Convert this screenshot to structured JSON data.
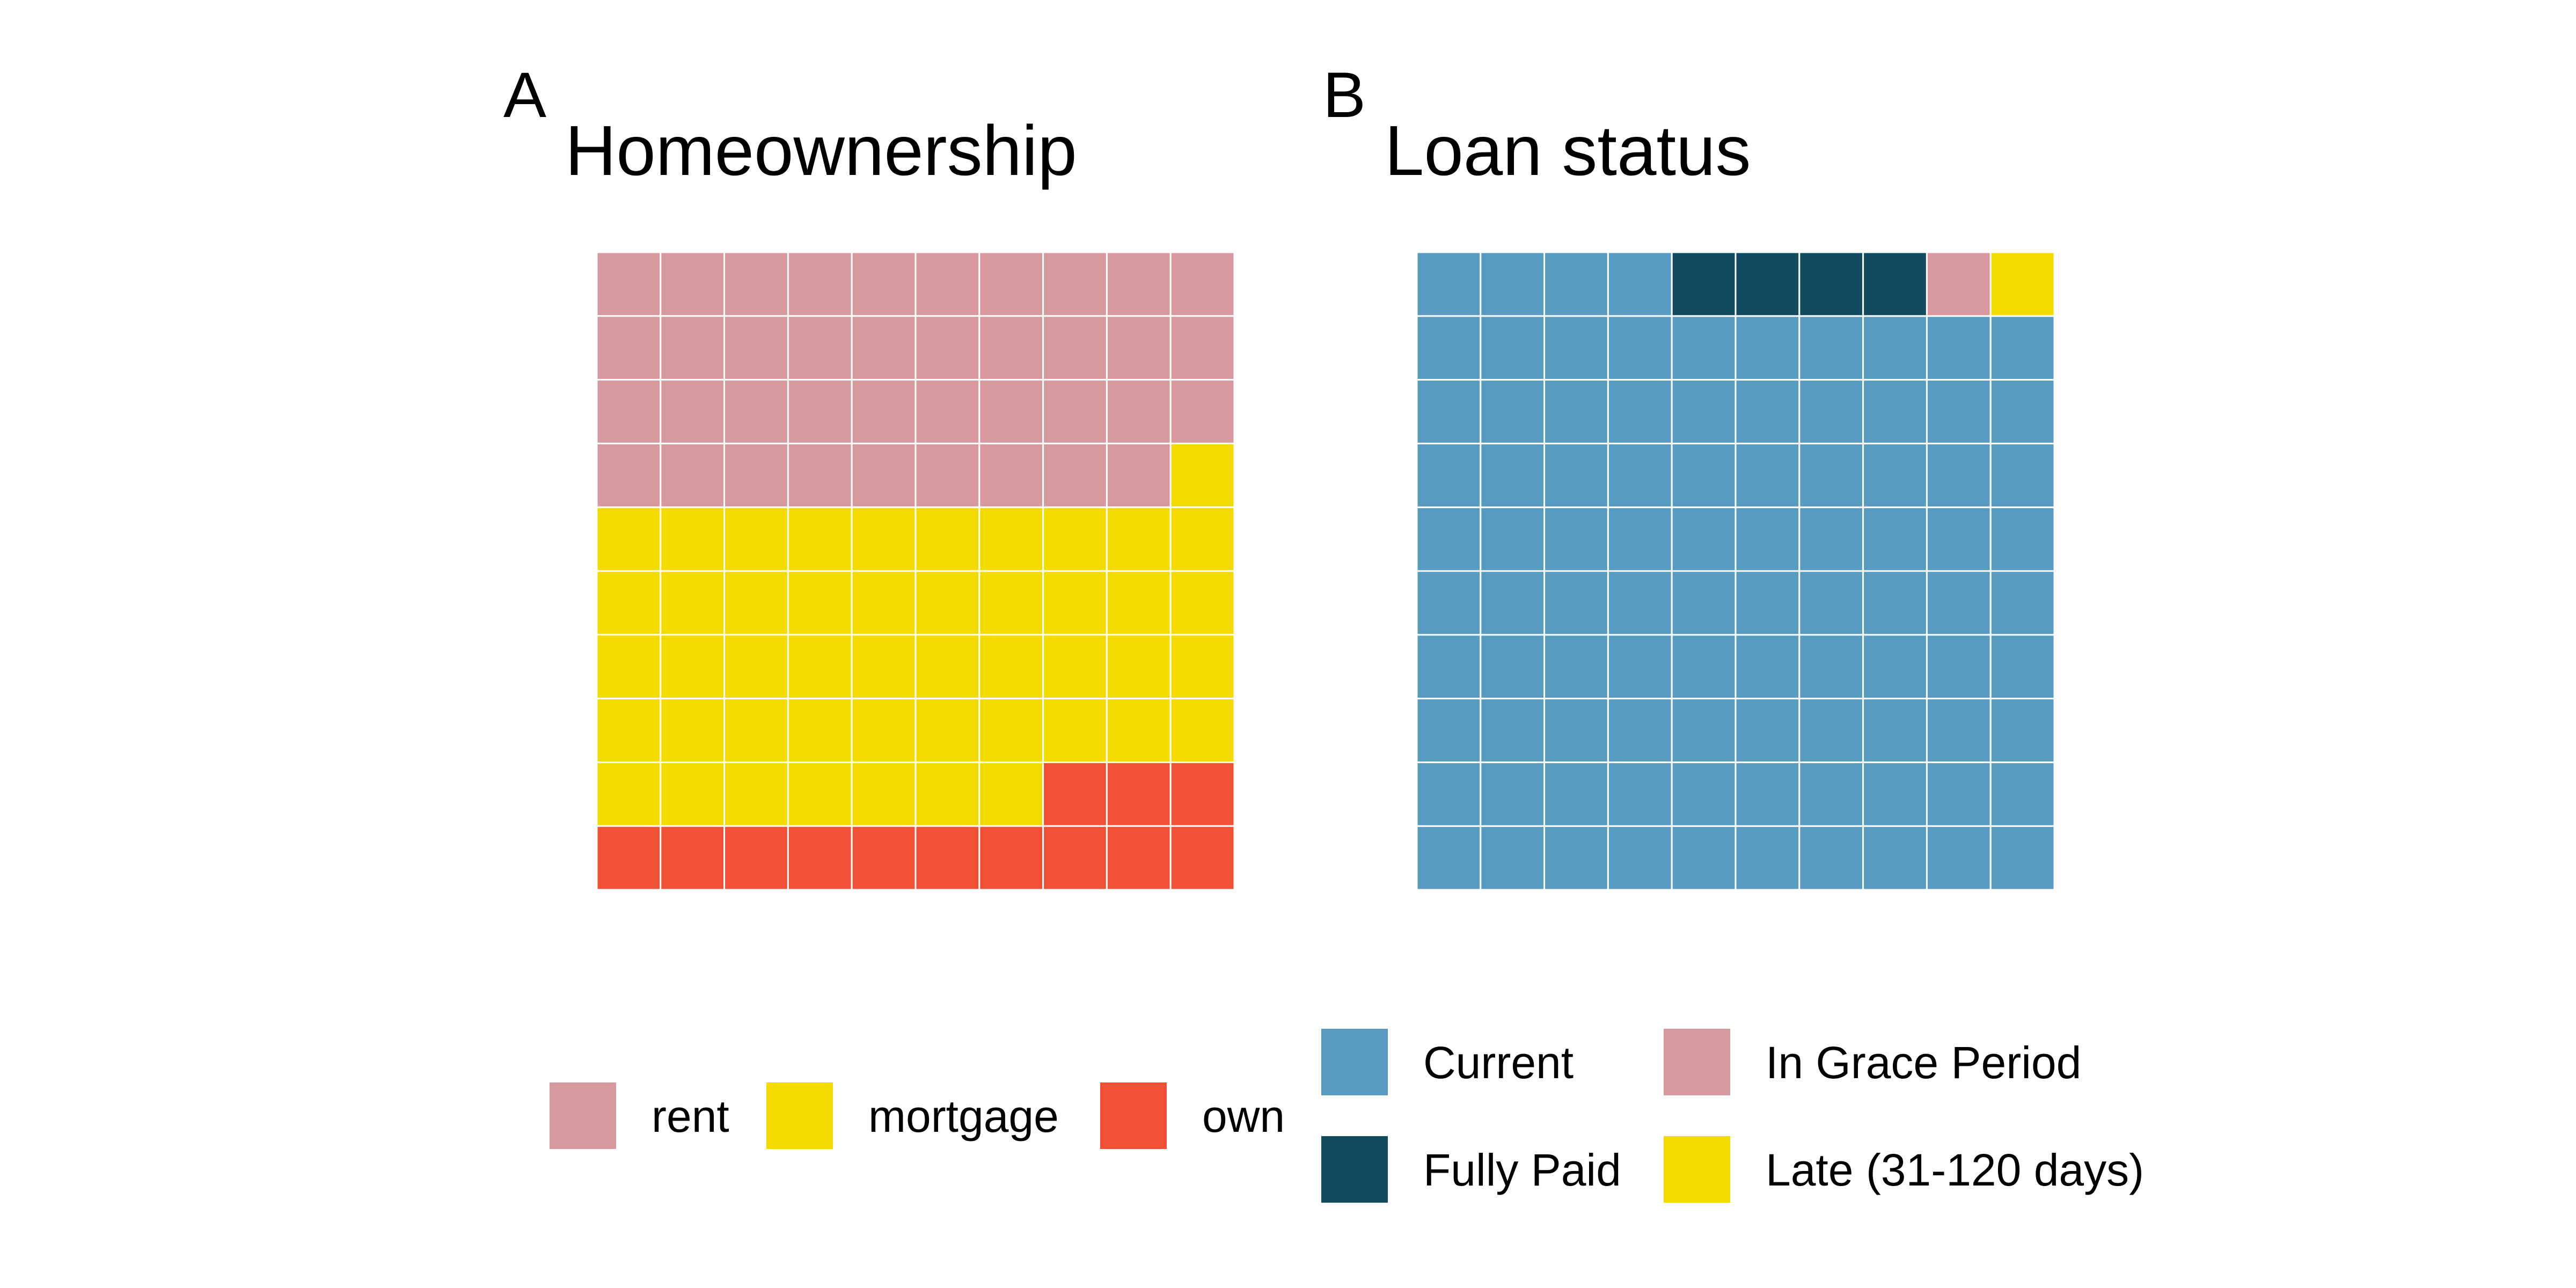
{
  "chart_data": [
    {
      "type": "waffle",
      "tag": "A",
      "title": "Homeownership",
      "grid": [
        10,
        10
      ],
      "categories": [
        "rent",
        "mortgage",
        "own"
      ],
      "values": [
        39,
        48,
        13
      ],
      "colors": {
        "rent": "#D8999E",
        "mortgage": "#F3DB00",
        "own": "#F05033"
      },
      "legend_position": "bottom"
    },
    {
      "type": "waffle",
      "tag": "B",
      "title": "Loan status",
      "grid": [
        10,
        10
      ],
      "categories": [
        "Current",
        "Fully Paid",
        "In Grace Period",
        "Late (31-120 days)"
      ],
      "values": [
        94,
        4,
        1,
        1
      ],
      "colors": {
        "Current": "#579CC0",
        "Fully Paid": "#124B5F",
        "In Grace Period": "#D8999E",
        "Late (31-120 days)": "#F3DB00"
      },
      "legend_position": "bottom"
    }
  ]
}
